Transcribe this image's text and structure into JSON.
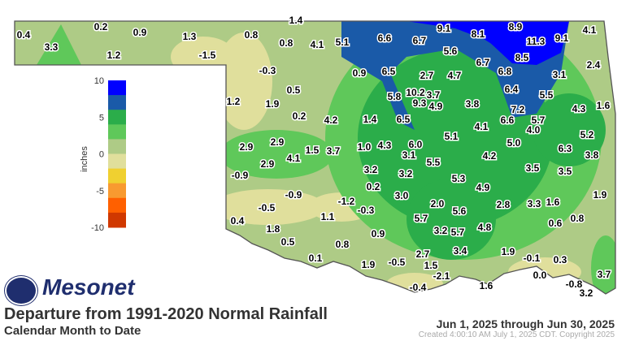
{
  "title": "Departure from 1991-2020 Normal Rainfall",
  "subtitle": "Calendar Month to Date",
  "date_range": "Jun 1, 2025 through Jun 30, 2025",
  "created": "Created 4:00:10 AM July 1, 2025 CDT. Copyright 2025",
  "brand": "Mesonet",
  "legend": {
    "unit": "inches",
    "ticks": [
      "10",
      "5",
      "0",
      "-5",
      "-10"
    ],
    "colors": [
      "#0000ff",
      "#1a5aa8",
      "#2bad4a",
      "#5fc85a",
      "#aecb86",
      "#e0df9c",
      "#f0d030",
      "#f89a30",
      "#ff6000",
      "#d03800"
    ]
  },
  "stations": [
    "0.4",
    "3.3",
    "0.2",
    "0.9",
    "1.2",
    "1.3",
    "-1.5",
    "0.8",
    "0.8",
    "1.4",
    "-0.3",
    "0.5",
    "1.2",
    "1.9",
    "0.2",
    "2.9",
    "2.9",
    "4.1",
    "2.9",
    "1.5",
    "4.1",
    "5.1",
    "6.6",
    "6.7",
    "9.1",
    "8.1",
    "8.9",
    "11.3",
    "9.1",
    "4.1",
    "5.6",
    "6.7",
    "8.5",
    "0.9",
    "6.5",
    "2.7",
    "4.7",
    "6.8",
    "3.1",
    "2.4",
    "6.4",
    "5.5",
    "5.8",
    "10.2",
    "3.7",
    "9.3",
    "4.9",
    "3.8",
    "7.2",
    "4.3",
    "1.6",
    "4.2",
    "1.4",
    "6.5",
    "4.1",
    "6.6",
    "5.7",
    "4.0",
    "5.2",
    "5.1",
    "5.0",
    "3.7",
    "1.0",
    "4.3",
    "6.0",
    "3.1",
    "4.2",
    "6.3",
    "3.8",
    "5.5",
    "3.2",
    "3.2",
    "3.5",
    "3.5",
    "5.3",
    "4.9",
    "0.2",
    "3.0",
    "1.9",
    "-1.2",
    "2.0",
    "5.6",
    "2.8",
    "3.3",
    "1.6",
    "-0.3",
    "1.1",
    "5.7",
    "0.6",
    "0.8",
    "3.2",
    "5.7",
    "4.8",
    "0.9",
    "0.8",
    "3.4",
    "1.9",
    "2.7",
    "-0.1",
    "0.3",
    "0.1",
    "1.9",
    "-0.5",
    "1.5",
    "-2.1",
    "3.7",
    "0.0",
    "-0.8",
    "-0.4",
    "1.6",
    "3.2",
    "-0.9",
    "-0.9",
    "-0.5",
    "0.4",
    "1.8",
    "0.5"
  ]
}
